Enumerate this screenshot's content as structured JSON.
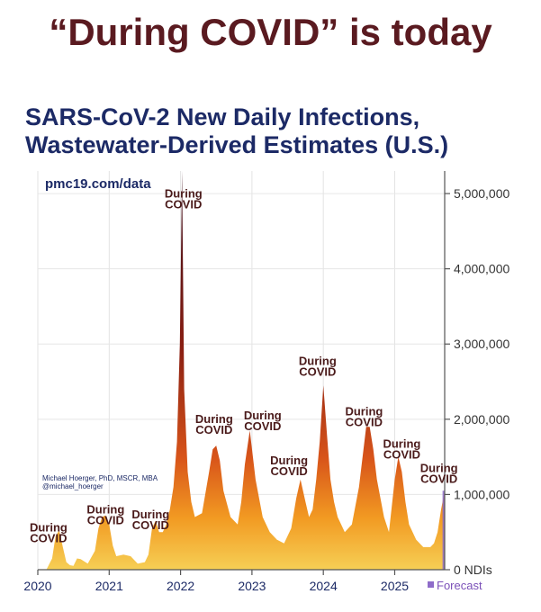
{
  "headline": "“During COVID” is today",
  "chart_data": {
    "type": "area",
    "title_lines": [
      "SARS-CoV-2 New Daily Infections,",
      "Wastewater-Derived Estimates (U.S.)"
    ],
    "source": "pmc19.com/data",
    "credit_lines": [
      "Michael Hoerger, PhD, MSCR, MBA",
      "@michael_hoerger"
    ],
    "ylabel": "",
    "ylim": [
      0,
      5300000
    ],
    "yticks": [
      0,
      1000000,
      2000000,
      3000000,
      4000000,
      5000000
    ],
    "ytick_labels": [
      "0 NDIs",
      "1,000,000",
      "2,000,000",
      "3,000,000",
      "4,000,000",
      "5,000,000"
    ],
    "xlim": [
      2020.0,
      2025.7
    ],
    "xticks": [
      2020,
      2021,
      2022,
      2023,
      2024,
      2025
    ],
    "xtick_labels": [
      "2020",
      "2021",
      "2022",
      "2023",
      "2024",
      "2025"
    ],
    "legend": {
      "label": "Forecast",
      "color": "#8e6cc9",
      "placement": "bottom-right"
    },
    "gradient_colors": [
      "#3a0d1c",
      "#8a1f12",
      "#d8541a",
      "#f29a22",
      "#f6cf55"
    ],
    "annotation_text": [
      "During",
      "COVID"
    ],
    "annotations": [
      {
        "x": 2020.15,
        "y": 510000
      },
      {
        "x": 2020.95,
        "y": 750000
      },
      {
        "x": 2021.58,
        "y": 680000
      },
      {
        "x": 2022.04,
        "y": 4950000
      },
      {
        "x": 2022.47,
        "y": 1950000
      },
      {
        "x": 2023.15,
        "y": 2000000
      },
      {
        "x": 2023.52,
        "y": 1400000
      },
      {
        "x": 2023.92,
        "y": 2720000
      },
      {
        "x": 2024.57,
        "y": 2050000
      },
      {
        "x": 2025.1,
        "y": 1620000
      },
      {
        "x": 2025.62,
        "y": 1300000
      }
    ],
    "x": [
      2020.0,
      2020.12,
      2020.2,
      2020.25,
      2020.3,
      2020.35,
      2020.4,
      2020.45,
      2020.5,
      2020.55,
      2020.6,
      2020.7,
      2020.8,
      2020.85,
      2020.9,
      2020.95,
      2021.0,
      2021.05,
      2021.1,
      2021.2,
      2021.3,
      2021.4,
      2021.5,
      2021.55,
      2021.6,
      2021.65,
      2021.7,
      2021.75,
      2021.8,
      2021.85,
      2021.9,
      2021.95,
      2021.99,
      2022.02,
      2022.05,
      2022.1,
      2022.15,
      2022.2,
      2022.3,
      2022.4,
      2022.45,
      2022.5,
      2022.55,
      2022.6,
      2022.7,
      2022.8,
      2022.85,
      2022.9,
      2022.97,
      2023.05,
      2023.15,
      2023.25,
      2023.35,
      2023.45,
      2023.55,
      2023.62,
      2023.68,
      2023.75,
      2023.8,
      2023.85,
      2023.9,
      2023.95,
      2024.0,
      2024.05,
      2024.1,
      2024.15,
      2024.2,
      2024.3,
      2024.4,
      2024.5,
      2024.55,
      2024.6,
      2024.65,
      2024.7,
      2024.75,
      2024.85,
      2024.92,
      2025.0,
      2025.05,
      2025.1,
      2025.15,
      2025.2,
      2025.3,
      2025.4,
      2025.5,
      2025.55,
      2025.6,
      2025.65,
      2025.7
    ],
    "values": [
      0,
      0,
      150000,
      450000,
      520000,
      300000,
      100000,
      60000,
      50000,
      150000,
      140000,
      80000,
      250000,
      550000,
      700000,
      720000,
      600000,
      320000,
      180000,
      200000,
      180000,
      80000,
      100000,
      200000,
      550000,
      650000,
      500000,
      500000,
      600000,
      800000,
      1100000,
      1700000,
      3000000,
      5300000,
      2400000,
      1300000,
      900000,
      700000,
      750000,
      1300000,
      1600000,
      1650000,
      1450000,
      1050000,
      700000,
      600000,
      900000,
      1400000,
      1850000,
      1200000,
      700000,
      500000,
      400000,
      350000,
      550000,
      950000,
      1200000,
      900000,
      700000,
      800000,
      1200000,
      1700000,
      2450000,
      1800000,
      1200000,
      900000,
      700000,
      500000,
      600000,
      1100000,
      1500000,
      1900000,
      1900000,
      1600000,
      1200000,
      700000,
      500000,
      1200000,
      1500000,
      1300000,
      900000,
      600000,
      400000,
      300000,
      300000,
      350000,
      500000,
      800000,
      1050000
    ],
    "forecast_start_x": 2025.67
  }
}
